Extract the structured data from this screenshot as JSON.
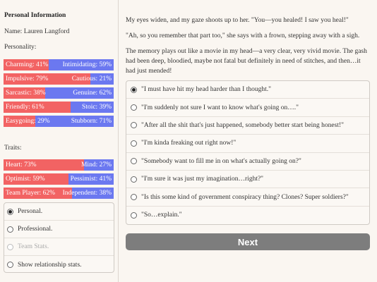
{
  "sidebar": {
    "section_title": "Personal Information",
    "name_line": "Name: Lauren Langford",
    "personality_label": "Personality:",
    "personality": [
      {
        "left": "Charming: 41%",
        "right": "Intimidating: 59%",
        "left_fraction": 0.41
      },
      {
        "left": "Impulsive: 79%",
        "right": "Cautious: 21%",
        "left_fraction": 0.79
      },
      {
        "left": "Sarcastic: 38%",
        "right": "Genuine: 62%",
        "left_fraction": 0.38
      },
      {
        "left": "Friendly: 61%",
        "right": "Stoic: 39%",
        "left_fraction": 0.61
      },
      {
        "left": "Easygoing: 29%",
        "right": "Stubborn: 71%",
        "left_fraction": 0.29
      }
    ],
    "traits_label": "Traits:",
    "traits": [
      {
        "left": "Heart: 73%",
        "right": "Mind: 27%",
        "left_fraction": 0.73
      },
      {
        "left": "Optimist: 59%",
        "right": "Pessimist: 41%",
        "left_fraction": 0.59
      },
      {
        "left": "Team Player: 62%",
        "right": "Independent: 38%",
        "left_fraction": 0.62
      }
    ],
    "stat_options": [
      {
        "label": "Personal.",
        "checked": true,
        "disabled": false
      },
      {
        "label": "Professional.",
        "checked": false,
        "disabled": false
      },
      {
        "label": "Team Stats.",
        "checked": false,
        "disabled": true
      },
      {
        "label": "Show relationship stats.",
        "checked": false,
        "disabled": false
      }
    ]
  },
  "colors": {
    "left_bar": "#f26363",
    "right_bar": "#6b78f0",
    "next_button": "#7d7d7d"
  },
  "story": {
    "paragraphs": [
      "My eyes widen, and my gaze shoots up to her. \"You—you healed! I saw you heal!\"",
      "\"Ah, so you remember that part too,\" she says with a frown, stepping away with a sigh.",
      "The memory plays out like a movie in my head—a very clear, very vivid movie. The gash had been deep, bloodied, maybe not fatal but definitely in need of stitches, and then…it had just mended!"
    ],
    "choices": [
      {
        "label": "\"I must have hit my head harder than I thought.\"",
        "checked": true
      },
      {
        "label": "\"I'm suddenly not sure I want to know what's going on….\"",
        "checked": false
      },
      {
        "label": "\"After all the shit that's just happened, somebody better start being honest!\"",
        "checked": false
      },
      {
        "label": "\"I'm kinda freaking out right now!\"",
        "checked": false
      },
      {
        "label": "\"Somebody want to fill me in on what's actually going on?\"",
        "checked": false
      },
      {
        "label": "\"I'm sure it was just my imagination…right?\"",
        "checked": false
      },
      {
        "label": "\"Is this some kind of government conspiracy thing? Clones? Super soldiers?\"",
        "checked": false
      },
      {
        "label": "\"So…explain.\"",
        "checked": false
      }
    ],
    "next_label": "Next"
  }
}
